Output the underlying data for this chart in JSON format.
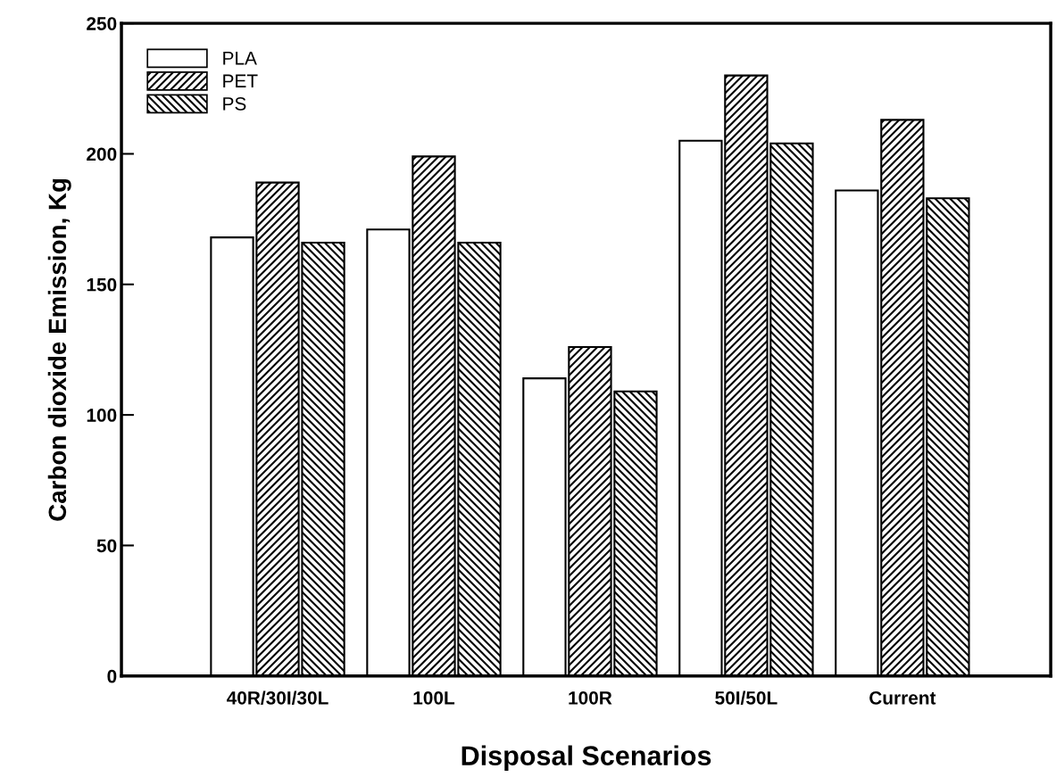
{
  "chart_data": {
    "type": "bar",
    "xlabel": "Disposal Scenarios",
    "ylabel": "Carbon dioxide Emission, Kg",
    "categories": [
      "40R/30I/30L",
      "100L",
      "100R",
      "50I/50L",
      "Current"
    ],
    "series": [
      {
        "name": "PLA",
        "color": "#ffffff",
        "values": [
          168,
          171,
          114,
          205,
          186
        ]
      },
      {
        "name": "PET",
        "color": "#000000",
        "values": [
          189,
          199,
          126,
          230,
          213
        ]
      },
      {
        "name": "PS",
        "color": "#000000",
        "values": [
          166,
          166,
          109,
          204,
          183
        ]
      }
    ],
    "ylim": [
      0,
      250
    ],
    "yticks": [
      0,
      50,
      100,
      150,
      200,
      250
    ],
    "grid": false,
    "legend": "top left"
  }
}
